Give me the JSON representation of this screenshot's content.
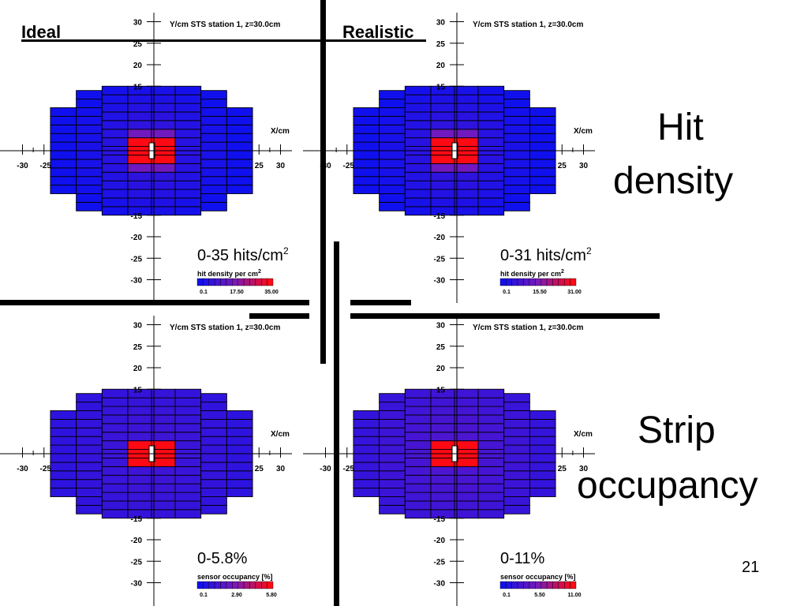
{
  "slide": {
    "column_left": "Ideal",
    "column_right": "Realistic",
    "row_top_title_line1": "Hit",
    "row_top_title_line2": "density",
    "row_bottom_title_line1": "Strip",
    "row_bottom_title_line2": "occupancy",
    "page_number": "21"
  },
  "common": {
    "plot_title": "Y/cm   STS station 1, z=30.0cm",
    "x_axis_label": "X/cm",
    "y_ticks": [
      "30",
      "25",
      "20",
      "15",
      "-15",
      "-20",
      "-25",
      "-30"
    ],
    "x_ticks_left": [
      "-30",
      "-25"
    ],
    "x_ticks_right": [
      "25",
      "30"
    ]
  },
  "panels": [
    {
      "id": "ideal-hit",
      "range": "0-35 hits/cm",
      "range_sup": "2",
      "legend_title": "hit density per cm",
      "legend_sup": "2",
      "legend_ticks": [
        "0.1",
        "17.50",
        "35.00"
      ],
      "level": 1.0
    },
    {
      "id": "real-hit",
      "range": "0-31 hits/cm",
      "range_sup": "2",
      "legend_title": "hit density per cm",
      "legend_sup": "2",
      "legend_ticks": [
        "0.1",
        "15.50",
        "31.00"
      ],
      "level": 1.0
    },
    {
      "id": "ideal-occ",
      "range": "0-5.8%",
      "range_sup": "",
      "legend_title": "sensor occupancy [%]",
      "legend_sup": "",
      "legend_ticks": [
        "0.1",
        "2.90",
        "5.80"
      ],
      "level": 1.6
    },
    {
      "id": "real-occ",
      "range": "0-11%",
      "range_sup": "",
      "legend_title": "sensor occupancy [%]",
      "legend_sup": "",
      "legend_ticks": [
        "0.1",
        "5.50",
        "11.00"
      ],
      "level": 2.2
    }
  ],
  "colors": {
    "low": "#1010ee",
    "mid": "#7a1ab8",
    "high": "#ff0a14"
  }
}
